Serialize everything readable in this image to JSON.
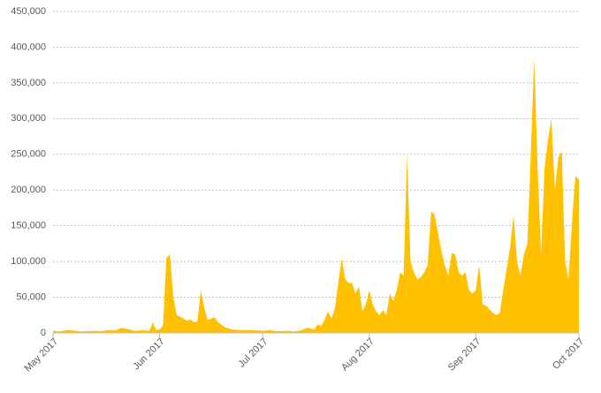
{
  "chart_data": {
    "type": "area",
    "color": "#ffc000",
    "grid": true,
    "x": [
      0,
      2,
      4,
      6,
      8,
      10,
      12,
      14,
      16,
      18,
      20,
      22,
      24,
      26,
      28,
      29,
      30,
      31,
      32,
      33,
      34,
      35,
      36,
      38,
      39,
      40,
      41,
      42,
      43,
      44,
      45,
      46,
      47,
      48,
      50,
      52,
      55,
      58,
      61,
      63,
      65,
      68,
      70,
      72,
      74,
      76,
      77,
      78,
      79,
      80,
      81,
      82,
      84,
      85,
      86,
      87,
      88,
      89,
      90,
      91,
      92,
      93,
      94,
      95,
      96,
      97,
      98,
      99,
      100,
      101,
      102,
      103,
      104,
      105,
      106,
      107,
      108,
      109,
      110,
      111,
      112,
      113,
      114,
      115,
      116,
      117,
      118,
      119,
      120,
      121,
      122,
      123,
      124,
      125,
      126,
      127,
      128,
      129,
      130,
      131,
      132,
      133,
      134,
      135,
      136,
      137,
      138,
      139,
      140,
      141,
      142,
      143,
      144,
      145,
      146,
      147,
      148,
      149,
      150,
      151,
      152,
      153
    ],
    "values": [
      3000,
      2000,
      4000,
      3500,
      2000,
      2500,
      3000,
      2500,
      4000,
      3500,
      7000,
      5000,
      3000,
      4000,
      3000,
      15000,
      4000,
      5000,
      10000,
      105000,
      110000,
      50000,
      25000,
      20000,
      17000,
      19000,
      15000,
      16000,
      60000,
      35000,
      18000,
      20000,
      22000,
      15000,
      8000,
      5000,
      4000,
      4000,
      3000,
      4000,
      2500,
      3000,
      2000,
      3500,
      7000,
      5000,
      12000,
      10000,
      18000,
      30000,
      20000,
      35000,
      105000,
      75000,
      70000,
      70000,
      55000,
      65000,
      30000,
      40000,
      60000,
      40000,
      30000,
      25000,
      32000,
      25000,
      55000,
      45000,
      60000,
      85000,
      80000,
      250000,
      100000,
      85000,
      75000,
      78000,
      85000,
      95000,
      170000,
      165000,
      140000,
      115000,
      95000,
      80000,
      112000,
      110000,
      85000,
      80000,
      85000,
      60000,
      55000,
      60000,
      95000,
      40000,
      38000,
      33000,
      28000,
      25000,
      28000,
      60000,
      90000,
      120000,
      165000,
      100000,
      80000,
      110000,
      125000,
      250000,
      385000,
      230000,
      110000,
      230000,
      270000,
      300000,
      200000,
      245000,
      255000,
      100000,
      75000,
      155000,
      220000,
      215000
    ],
    "xlim": [
      0,
      153
    ],
    "xticks": [
      {
        "value": 0,
        "label": "May 2017"
      },
      {
        "value": 31,
        "label": "Jun 2017"
      },
      {
        "value": 61,
        "label": "Jul 2017"
      },
      {
        "value": 92,
        "label": "Aug 2017"
      },
      {
        "value": 123,
        "label": "Sep 2017"
      },
      {
        "value": 153,
        "label": "Oct 2017"
      }
    ],
    "ylim": [
      0,
      450000
    ],
    "yticks": [
      0,
      {
        "value": 50000,
        "label": "50,000"
      },
      {
        "value": 100000,
        "label": "100,000"
      },
      {
        "value": 150000,
        "label": "150,000"
      },
      {
        "value": 200000,
        "label": "200,000"
      },
      {
        "value": 250000,
        "label": "250,000"
      },
      {
        "value": 300000,
        "label": "300,000"
      },
      {
        "value": 350000,
        "label": "350,000"
      },
      {
        "value": 400000,
        "label": "400,000"
      },
      {
        "value": 450000,
        "label": "450,000"
      }
    ]
  }
}
